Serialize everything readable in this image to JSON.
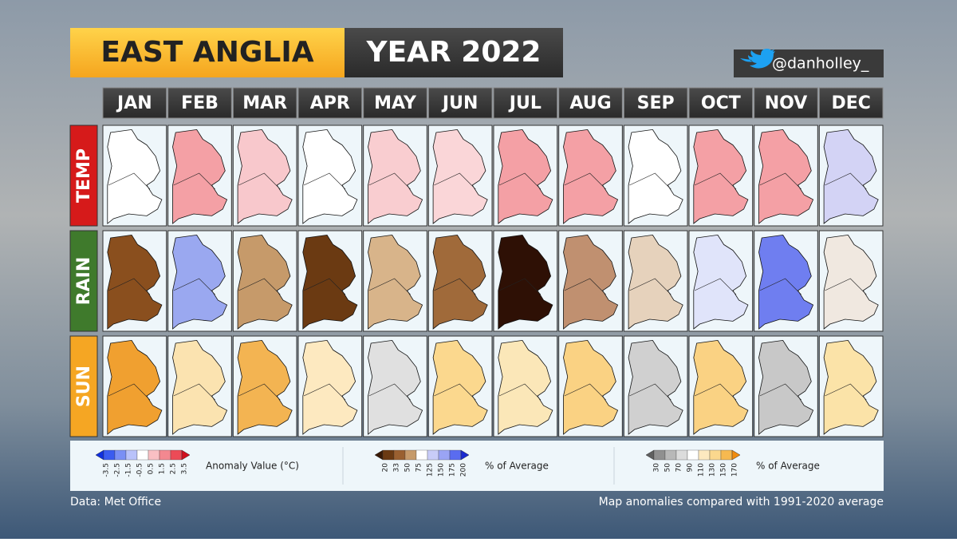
{
  "header": {
    "title_left": "EAST ANGLIA",
    "title_right": "YEAR 2022",
    "handle": "@danholley_"
  },
  "months": [
    "JAN",
    "FEB",
    "MAR",
    "APR",
    "MAY",
    "JUN",
    "JUL",
    "AUG",
    "SEP",
    "OCT",
    "NOV",
    "DEC"
  ],
  "rows": [
    {
      "label": "TEMP",
      "label_color": "#d61a1a",
      "cell_colors": [
        "#ffffff",
        "#f4a0a5",
        "#f8c8cc",
        "#ffffff",
        "#f9cdd0",
        "#fad6d8",
        "#f4a0a5",
        "#f4a0a5",
        "#ffffff",
        "#f4a0a5",
        "#f4a0a5",
        "#d3d3f5"
      ]
    },
    {
      "label": "RAIN",
      "label_color": "#3f7a2c",
      "cell_colors": [
        "#8a4f1e",
        "#9aa8f0",
        "#c69a6a",
        "#6b3a12",
        "#d8b48a",
        "#a06a3a",
        "#2e1005",
        "#c09070",
        "#e6d2bc",
        "#e0e4fa",
        "#6f7ef0",
        "#f0e8e0"
      ]
    },
    {
      "label": "SUN",
      "label_color": "#f5a623",
      "cell_colors": [
        "#f0a030",
        "#fbe3b0",
        "#f3b452",
        "#fde9c0",
        "#e0e0e0",
        "#fbd88e",
        "#fbe7b8",
        "#fad283",
        "#d0d0d0",
        "#fad283",
        "#c8c8c8",
        "#fbe3a8"
      ]
    }
  ],
  "legends": [
    {
      "label": "Anomaly Value (°C)",
      "ticks": [
        "-3.5",
        "-2.5",
        "-1.5",
        "-0.5",
        "0.5",
        "1.5",
        "2.5",
        "3.5"
      ],
      "colors": [
        "#1030e0",
        "#3b5cf0",
        "#7a8ff5",
        "#b9c2fa",
        "#ffffff",
        "#f9c0c4",
        "#f38890",
        "#ec4b57",
        "#d0101e"
      ]
    },
    {
      "label": "% of Average",
      "ticks": [
        "20",
        "33",
        "50",
        "75",
        "125",
        "150",
        "175",
        "200"
      ],
      "colors": [
        "#3a1a05",
        "#6b3a12",
        "#9a6030",
        "#c69a6a",
        "#ffffff",
        "#c8ccf8",
        "#9aa4f4",
        "#5a6cf0",
        "#1a2ad0"
      ]
    },
    {
      "label": "% of Average",
      "ticks": [
        "30",
        "50",
        "70",
        "90",
        "110",
        "130",
        "150",
        "170"
      ],
      "colors": [
        "#606060",
        "#909090",
        "#b8b8b8",
        "#dcdcdc",
        "#ffffff",
        "#fde9c0",
        "#fbd88e",
        "#f6b950",
        "#f08c10"
      ]
    }
  ],
  "footer": {
    "source": "Data: Met Office",
    "note": "Map anomalies compared with 1991-2020 average"
  }
}
